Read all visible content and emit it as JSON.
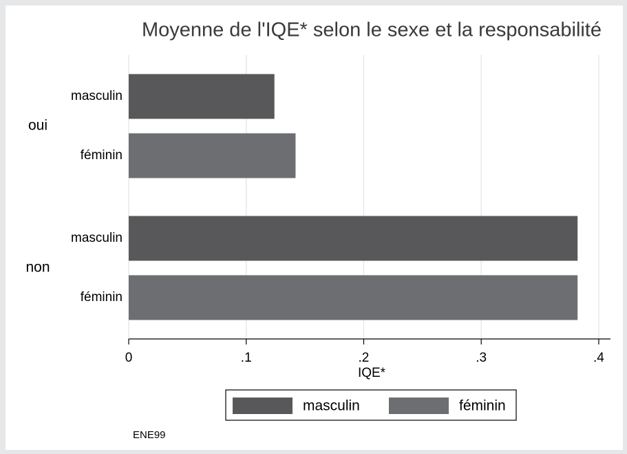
{
  "chart_data": {
    "type": "hbar",
    "title": "Moyenne de l'IQE* selon le sexe et la responsabilité",
    "xlabel": "IQE*",
    "note": "ENE99",
    "categories": [
      "oui",
      "non"
    ],
    "series": [
      {
        "name": "masculin",
        "color": "#58585a",
        "values": [
          0.124,
          0.382
        ]
      },
      {
        "name": "féminin",
        "color": "#6d6e71",
        "values": [
          0.142,
          0.382
        ]
      }
    ],
    "xlim": [
      0,
      0.41
    ],
    "xticks": [
      0,
      {
        "value": 0.1,
        "label": ".1"
      },
      {
        "value": 0.2,
        "label": ".2"
      },
      {
        "value": 0.3,
        "label": ".3"
      },
      {
        "value": 0.4,
        "label": ".4"
      }
    ],
    "grid": true,
    "legend": "bottom"
  }
}
